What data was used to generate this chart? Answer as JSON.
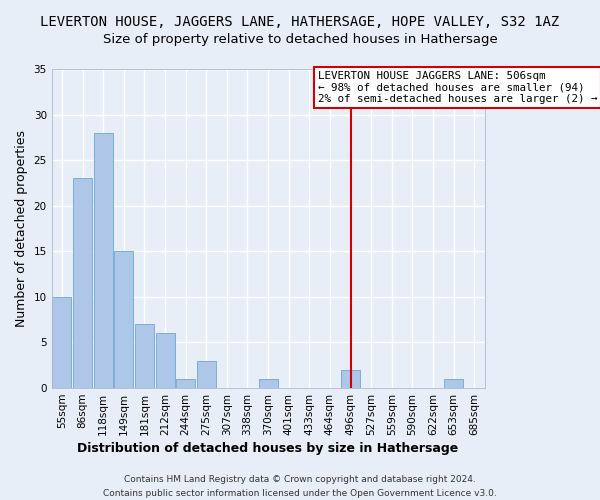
{
  "title": "LEVERTON HOUSE, JAGGERS LANE, HATHERSAGE, HOPE VALLEY, S32 1AZ",
  "subtitle": "Size of property relative to detached houses in Hathersage",
  "xlabel": "Distribution of detached houses by size in Hathersage",
  "ylabel": "Number of detached properties",
  "bin_labels": [
    "55sqm",
    "86sqm",
    "118sqm",
    "149sqm",
    "181sqm",
    "212sqm",
    "244sqm",
    "275sqm",
    "307sqm",
    "338sqm",
    "370sqm",
    "401sqm",
    "433sqm",
    "464sqm",
    "496sqm",
    "527sqm",
    "559sqm",
    "590sqm",
    "622sqm",
    "653sqm",
    "685sqm"
  ],
  "bar_heights": [
    10,
    23,
    28,
    15,
    7,
    6,
    1,
    3,
    0,
    0,
    1,
    0,
    0,
    0,
    2,
    0,
    0,
    0,
    0,
    1,
    0
  ],
  "bar_color": "#aec6e8",
  "bar_edge_color": "#7aaed4",
  "red_line_index": 14,
  "annotation_line0": "LEVERTON HOUSE JAGGERS LANE: 506sqm",
  "annotation_line1": "← 98% of detached houses are smaller (94)",
  "annotation_line2": "2% of semi-detached houses are larger (2) →",
  "ylim": [
    0,
    35
  ],
  "yticks": [
    0,
    5,
    10,
    15,
    20,
    25,
    30,
    35
  ],
  "footer1": "Contains HM Land Registry data © Crown copyright and database right 2024.",
  "footer2": "Contains public sector information licensed under the Open Government Licence v3.0.",
  "bg_color": "#e8eef8",
  "plot_bg_color": "#e8eef8",
  "grid_color": "#ffffff",
  "annotation_box_color": "#ffffff",
  "annotation_box_edge": "#cc0000",
  "red_line_color": "#cc0000",
  "title_fontsize": 10,
  "subtitle_fontsize": 9.5,
  "axis_label_fontsize": 9,
  "tick_fontsize": 7.5,
  "annotation_fontsize": 7.8,
  "footer_fontsize": 6.5
}
